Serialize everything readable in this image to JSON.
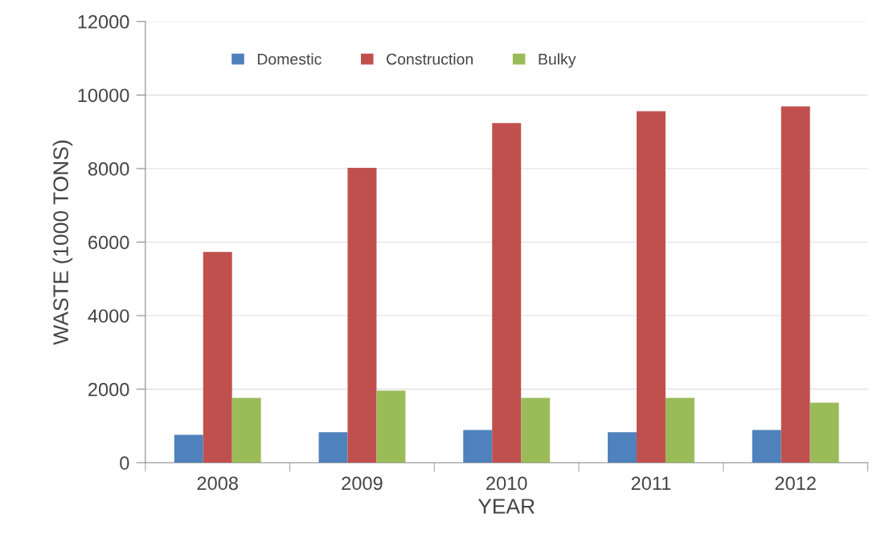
{
  "chart_data": {
    "type": "bar",
    "xlabel": "YEAR",
    "ylabel": "WASTE (1000 TONS)",
    "categories": [
      "2008",
      "2009",
      "2010",
      "2011",
      "2012"
    ],
    "series": [
      {
        "name": "Domestic",
        "color": "#4f81bd",
        "values": [
          760,
          830,
          890,
          830,
          890
        ]
      },
      {
        "name": "Construction",
        "color": "#c0504d",
        "values": [
          5730,
          8020,
          9240,
          9560,
          9690
        ]
      },
      {
        "name": "Bulky",
        "color": "#9bbb59",
        "values": [
          1760,
          1960,
          1760,
          1760,
          1630
        ]
      }
    ],
    "ylim": [
      0,
      12000
    ],
    "yticks": [
      0,
      2000,
      4000,
      6000,
      8000,
      10000,
      12000
    ],
    "grid": "y",
    "legend": "top left"
  }
}
